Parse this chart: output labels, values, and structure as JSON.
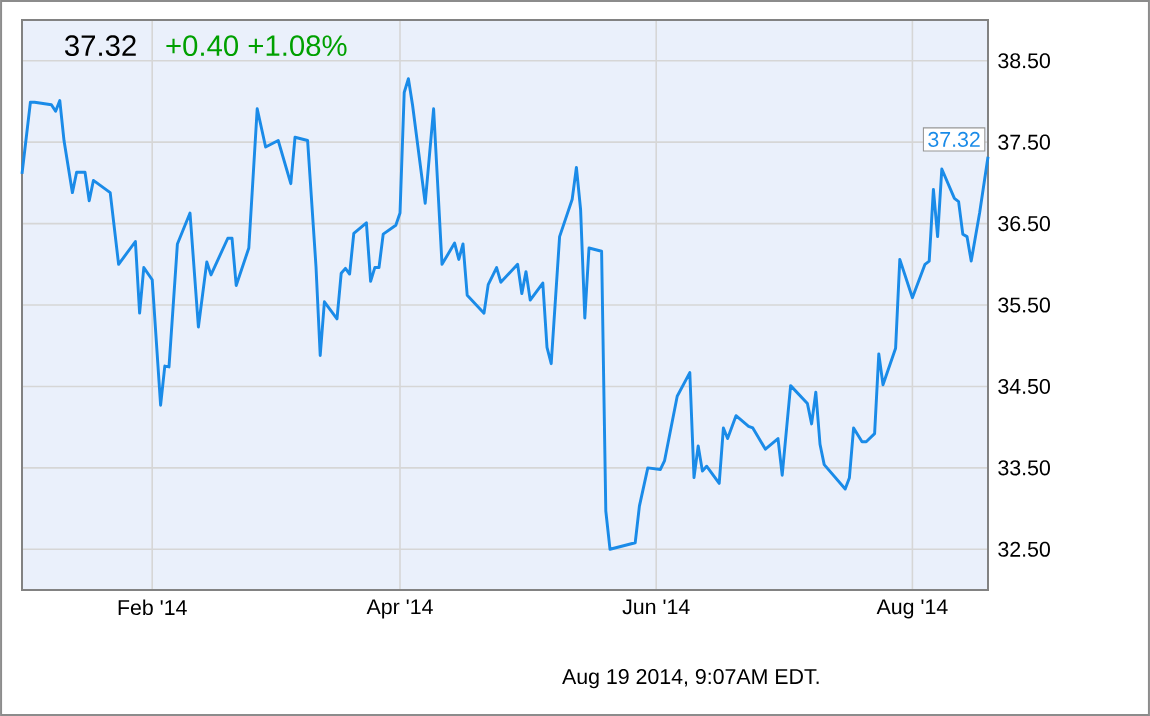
{
  "chart_data": {
    "type": "line",
    "title": "37.32",
    "subtitle": "+0.40  +1.08%",
    "annotations": [
      {
        "text": "37.32",
        "x": "2014-08-19",
        "y": 37.32
      },
      "Aug 19 2014, 9:07AM EDT."
    ],
    "xlim": [
      "2014-01-01",
      "2014-08-19"
    ],
    "xticks": [
      {
        "value": "2014-02-01",
        "label": "Feb '14"
      },
      {
        "value": "2014-04-01",
        "label": "Apr '14"
      },
      {
        "value": "2014-06-01",
        "label": "Jun '14"
      },
      {
        "value": "2014-08-01",
        "label": "Aug '14"
      }
    ],
    "ylim": [
      32.0,
      39.0
    ],
    "yticks": [
      {
        "value": 32.5,
        "label": "32.50"
      },
      {
        "value": 33.5,
        "label": "33.50"
      },
      {
        "value": 34.5,
        "label": "34.50"
      },
      {
        "value": 35.5,
        "label": "35.50"
      },
      {
        "value": 36.5,
        "label": "36.50"
      },
      {
        "value": 37.5,
        "label": "37.50"
      },
      {
        "value": 38.5,
        "label": "38.50"
      }
    ],
    "grid": true,
    "x": [
      "2014-01-01",
      "2014-01-03",
      "2014-01-04",
      "2014-01-08",
      "2014-01-09",
      "2014-01-10",
      "2014-01-11",
      "2014-01-13",
      "2014-01-14",
      "2014-01-16",
      "2014-01-17",
      "2014-01-18",
      "2014-01-22",
      "2014-01-24",
      "2014-01-28",
      "2014-01-29",
      "2014-01-30",
      "2014-02-01",
      "2014-02-03",
      "2014-02-04",
      "2014-02-05",
      "2014-02-07",
      "2014-02-10",
      "2014-02-12",
      "2014-02-14",
      "2014-02-15",
      "2014-02-19",
      "2014-02-20",
      "2014-02-21",
      "2014-02-24",
      "2014-02-26",
      "2014-02-28",
      "2014-03-03",
      "2014-03-06",
      "2014-03-07",
      "2014-03-10",
      "2014-03-12",
      "2014-03-13",
      "2014-03-14",
      "2014-03-17",
      "2014-03-18",
      "2014-03-19",
      "2014-03-20",
      "2014-03-21",
      "2014-03-24",
      "2014-03-25",
      "2014-03-26",
      "2014-03-27",
      "2014-03-28",
      "2014-03-31",
      "2014-04-01",
      "2014-04-02",
      "2014-04-03",
      "2014-04-04",
      "2014-04-07",
      "2014-04-09",
      "2014-04-11",
      "2014-04-14",
      "2014-04-15",
      "2014-04-16",
      "2014-04-17",
      "2014-04-21",
      "2014-04-22",
      "2014-04-24",
      "2014-04-25",
      "2014-04-29",
      "2014-04-30",
      "2014-05-01",
      "2014-05-02",
      "2014-05-05",
      "2014-05-06",
      "2014-05-07",
      "2014-05-09",
      "2014-05-12",
      "2014-05-13",
      "2014-05-14",
      "2014-05-15",
      "2014-05-16",
      "2014-05-19",
      "2014-05-20",
      "2014-05-21",
      "2014-05-27",
      "2014-05-28",
      "2014-05-30",
      "2014-06-02",
      "2014-06-03",
      "2014-06-06",
      "2014-06-09",
      "2014-06-10",
      "2014-06-11",
      "2014-06-12",
      "2014-06-13",
      "2014-06-16",
      "2014-06-17",
      "2014-06-18",
      "2014-06-20",
      "2014-06-23",
      "2014-06-24",
      "2014-06-27",
      "2014-06-30",
      "2014-07-01",
      "2014-07-03",
      "2014-07-07",
      "2014-07-08",
      "2014-07-09",
      "2014-07-10",
      "2014-07-11",
      "2014-07-16",
      "2014-07-17",
      "2014-07-18",
      "2014-07-20",
      "2014-07-21",
      "2014-07-23",
      "2014-07-24",
      "2014-07-25",
      "2014-07-28",
      "2014-07-29",
      "2014-08-01",
      "2014-08-04",
      "2014-08-05",
      "2014-08-06",
      "2014-08-07",
      "2014-08-08",
      "2014-08-11",
      "2014-08-12",
      "2014-08-13",
      "2014-08-14",
      "2014-08-15",
      "2014-08-17",
      "2014-08-19"
    ],
    "series": [
      {
        "color": "#1a8be8",
        "values": [
          37.11,
          37.99,
          37.99,
          37.96,
          37.88,
          38.01,
          37.52,
          36.88,
          37.13,
          37.13,
          36.78,
          37.03,
          36.88,
          36.0,
          36.28,
          35.4,
          35.96,
          35.81,
          34.27,
          34.75,
          34.74,
          36.25,
          36.63,
          35.23,
          36.03,
          35.87,
          36.32,
          36.32,
          35.74,
          36.2,
          37.91,
          37.44,
          37.52,
          36.99,
          37.56,
          37.52,
          35.97,
          34.88,
          35.54,
          35.33,
          35.89,
          35.95,
          35.88,
          36.38,
          36.51,
          35.79,
          35.96,
          35.96,
          36.37,
          36.48,
          36.63,
          38.11,
          38.28,
          37.95,
          36.75,
          37.91,
          36.0,
          36.26,
          36.06,
          36.25,
          35.62,
          35.4,
          35.75,
          35.96,
          35.78,
          36.0,
          35.64,
          35.91,
          35.56,
          35.77,
          34.98,
          34.78,
          36.34,
          36.8,
          37.19,
          36.67,
          35.34,
          36.2,
          36.16,
          32.97,
          32.5,
          32.58,
          33.03,
          33.5,
          33.48,
          33.59,
          34.38,
          34.67,
          33.38,
          33.77,
          33.46,
          33.52,
          33.31,
          33.99,
          33.86,
          34.14,
          34.01,
          33.99,
          33.73,
          33.86,
          33.41,
          34.51,
          34.29,
          34.04,
          34.43,
          33.79,
          33.54,
          33.24,
          33.38,
          33.99,
          33.82,
          33.82,
          33.92,
          34.9,
          34.52,
          34.97,
          36.06,
          35.59,
          36.0,
          36.04,
          36.92,
          36.34,
          37.17,
          36.81,
          36.77,
          36.37,
          36.34,
          36.04,
          36.63,
          37.32
        ]
      }
    ]
  }
}
